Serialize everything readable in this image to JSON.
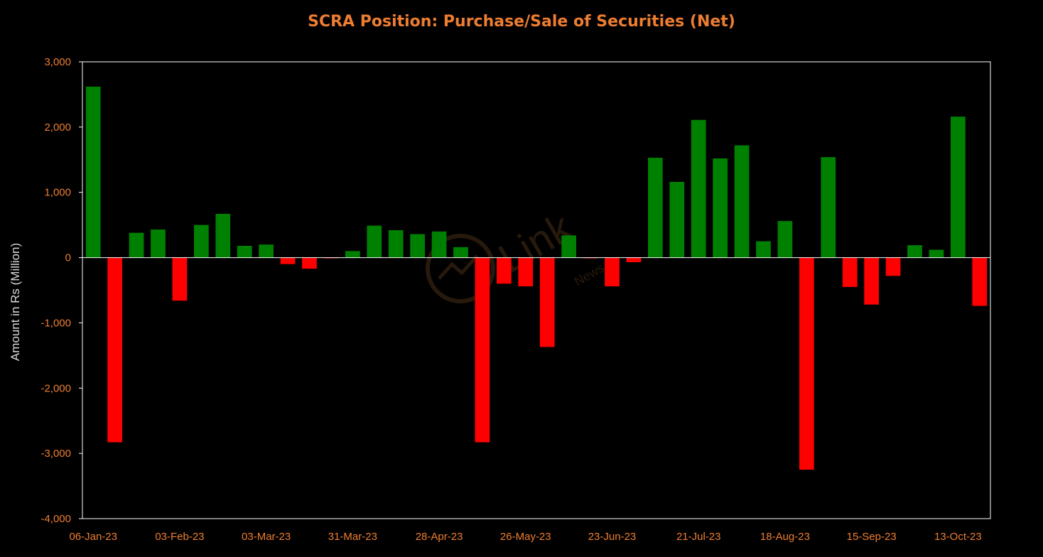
{
  "chart_data": {
    "type": "bar",
    "title": "SCRA Position: Purchase/Sale of Securities (Net)",
    "ylabel": "Amount in Rs (Million)",
    "xlabel": "",
    "ylim": [
      -4000,
      3000
    ],
    "yticks": [
      3000,
      2000,
      1000,
      0,
      -1000,
      -2000,
      -3000,
      -4000
    ],
    "ytick_labels": [
      "3,000",
      "2,000",
      "1,000",
      "0",
      "-1,000",
      "-2,000",
      "-3,000",
      "-4,000"
    ],
    "categories": [
      "06-Jan-23",
      "13-Jan-23",
      "20-Jan-23",
      "27-Jan-23",
      "03-Feb-23",
      "10-Feb-23",
      "17-Feb-23",
      "24-Feb-23",
      "03-Mar-23",
      "10-Mar-23",
      "17-Mar-23",
      "24-Mar-23",
      "31-Mar-23",
      "07-Apr-23",
      "14-Apr-23",
      "21-Apr-23",
      "28-Apr-23",
      "05-May-23",
      "12-May-23",
      "19-May-23",
      "26-May-23",
      "02-Jun-23",
      "09-Jun-23",
      "16-Jun-23",
      "23-Jun-23",
      "30-Jun-23",
      "07-Jul-23",
      "14-Jul-23",
      "21-Jul-23",
      "28-Jul-23",
      "04-Aug-23",
      "11-Aug-23",
      "18-Aug-23",
      "25-Aug-23",
      "01-Sep-23",
      "08-Sep-23",
      "15-Sep-23",
      "22-Sep-23",
      "29-Sep-23",
      "06-Oct-23",
      "13-Oct-23",
      "20-Oct-23"
    ],
    "x_tick_labels": [
      "06-Jan-23",
      "03-Feb-23",
      "03-Mar-23",
      "31-Mar-23",
      "28-Apr-23",
      "26-May-23",
      "23-Jun-23",
      "21-Jul-23",
      "18-Aug-23",
      "15-Sep-23",
      "13-Oct-23"
    ],
    "values": [
      2620,
      -2830,
      380,
      430,
      -660,
      500,
      670,
      180,
      200,
      -100,
      -170,
      -10,
      100,
      490,
      420,
      360,
      400,
      160,
      -2830,
      -400,
      -440,
      -1370,
      340,
      -10,
      -440,
      -70,
      1530,
      1160,
      2110,
      1520,
      1720,
      250,
      560,
      -3250,
      1540,
      -450,
      -720,
      -280,
      190,
      120,
      2160,
      -740
    ],
    "positive_color": "#008000",
    "negative_color": "#FF0000",
    "grid": false,
    "legend": "none"
  },
  "watermark": {
    "text": "Link",
    "subtext": "News"
  }
}
